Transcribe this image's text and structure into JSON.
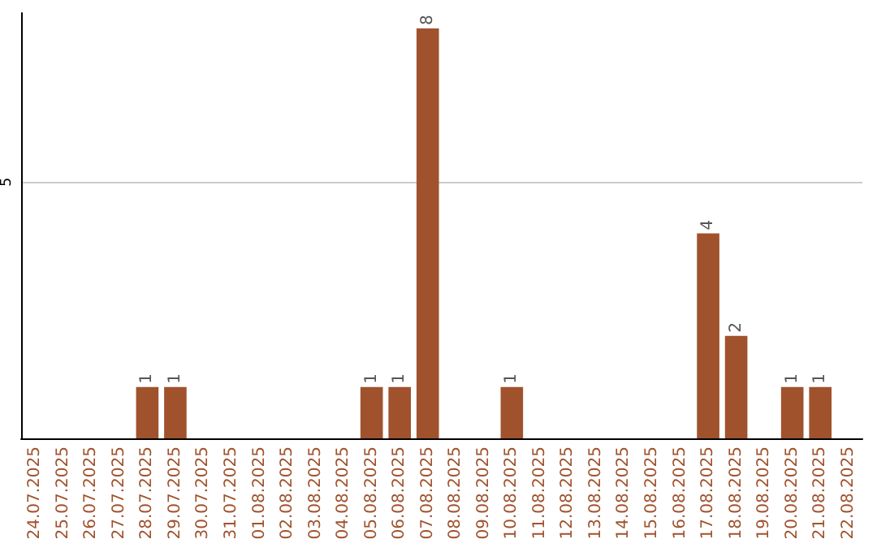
{
  "chart_data": {
    "type": "bar",
    "categories": [
      "24.07.2025",
      "25.07.2025",
      "26.07.2025",
      "27.07.2025",
      "28.07.2025",
      "29.07.2025",
      "30.07.2025",
      "31.07.2025",
      "01.08.2025",
      "02.08.2025",
      "03.08.2025",
      "04.08.2025",
      "05.08.2025",
      "06.08.2025",
      "07.08.2025",
      "08.08.2025",
      "09.08.2025",
      "10.08.2025",
      "11.08.2025",
      "12.08.2025",
      "13.08.2025",
      "14.08.2025",
      "15.08.2025",
      "16.08.2025",
      "17.08.2025",
      "18.08.2025",
      "19.08.2025",
      "20.08.2025",
      "21.08.2025",
      "22.08.2025"
    ],
    "values": [
      0,
      0,
      0,
      0,
      1,
      1,
      0,
      0,
      0,
      0,
      0,
      0,
      1,
      1,
      8,
      0,
      0,
      1,
      0,
      0,
      0,
      0,
      0,
      0,
      4,
      2,
      0,
      1,
      1,
      0
    ],
    "value_labels": [
      null,
      null,
      null,
      null,
      "1",
      "1",
      null,
      null,
      null,
      null,
      null,
      null,
      "1",
      "1",
      "8",
      null,
      null,
      "1",
      null,
      null,
      null,
      null,
      null,
      null,
      "4",
      "2",
      null,
      "1",
      "1",
      null
    ],
    "color": "#a0522d",
    "ylim": [
      0,
      8.3
    ],
    "yticks": [
      5
    ],
    "grid": "y"
  }
}
